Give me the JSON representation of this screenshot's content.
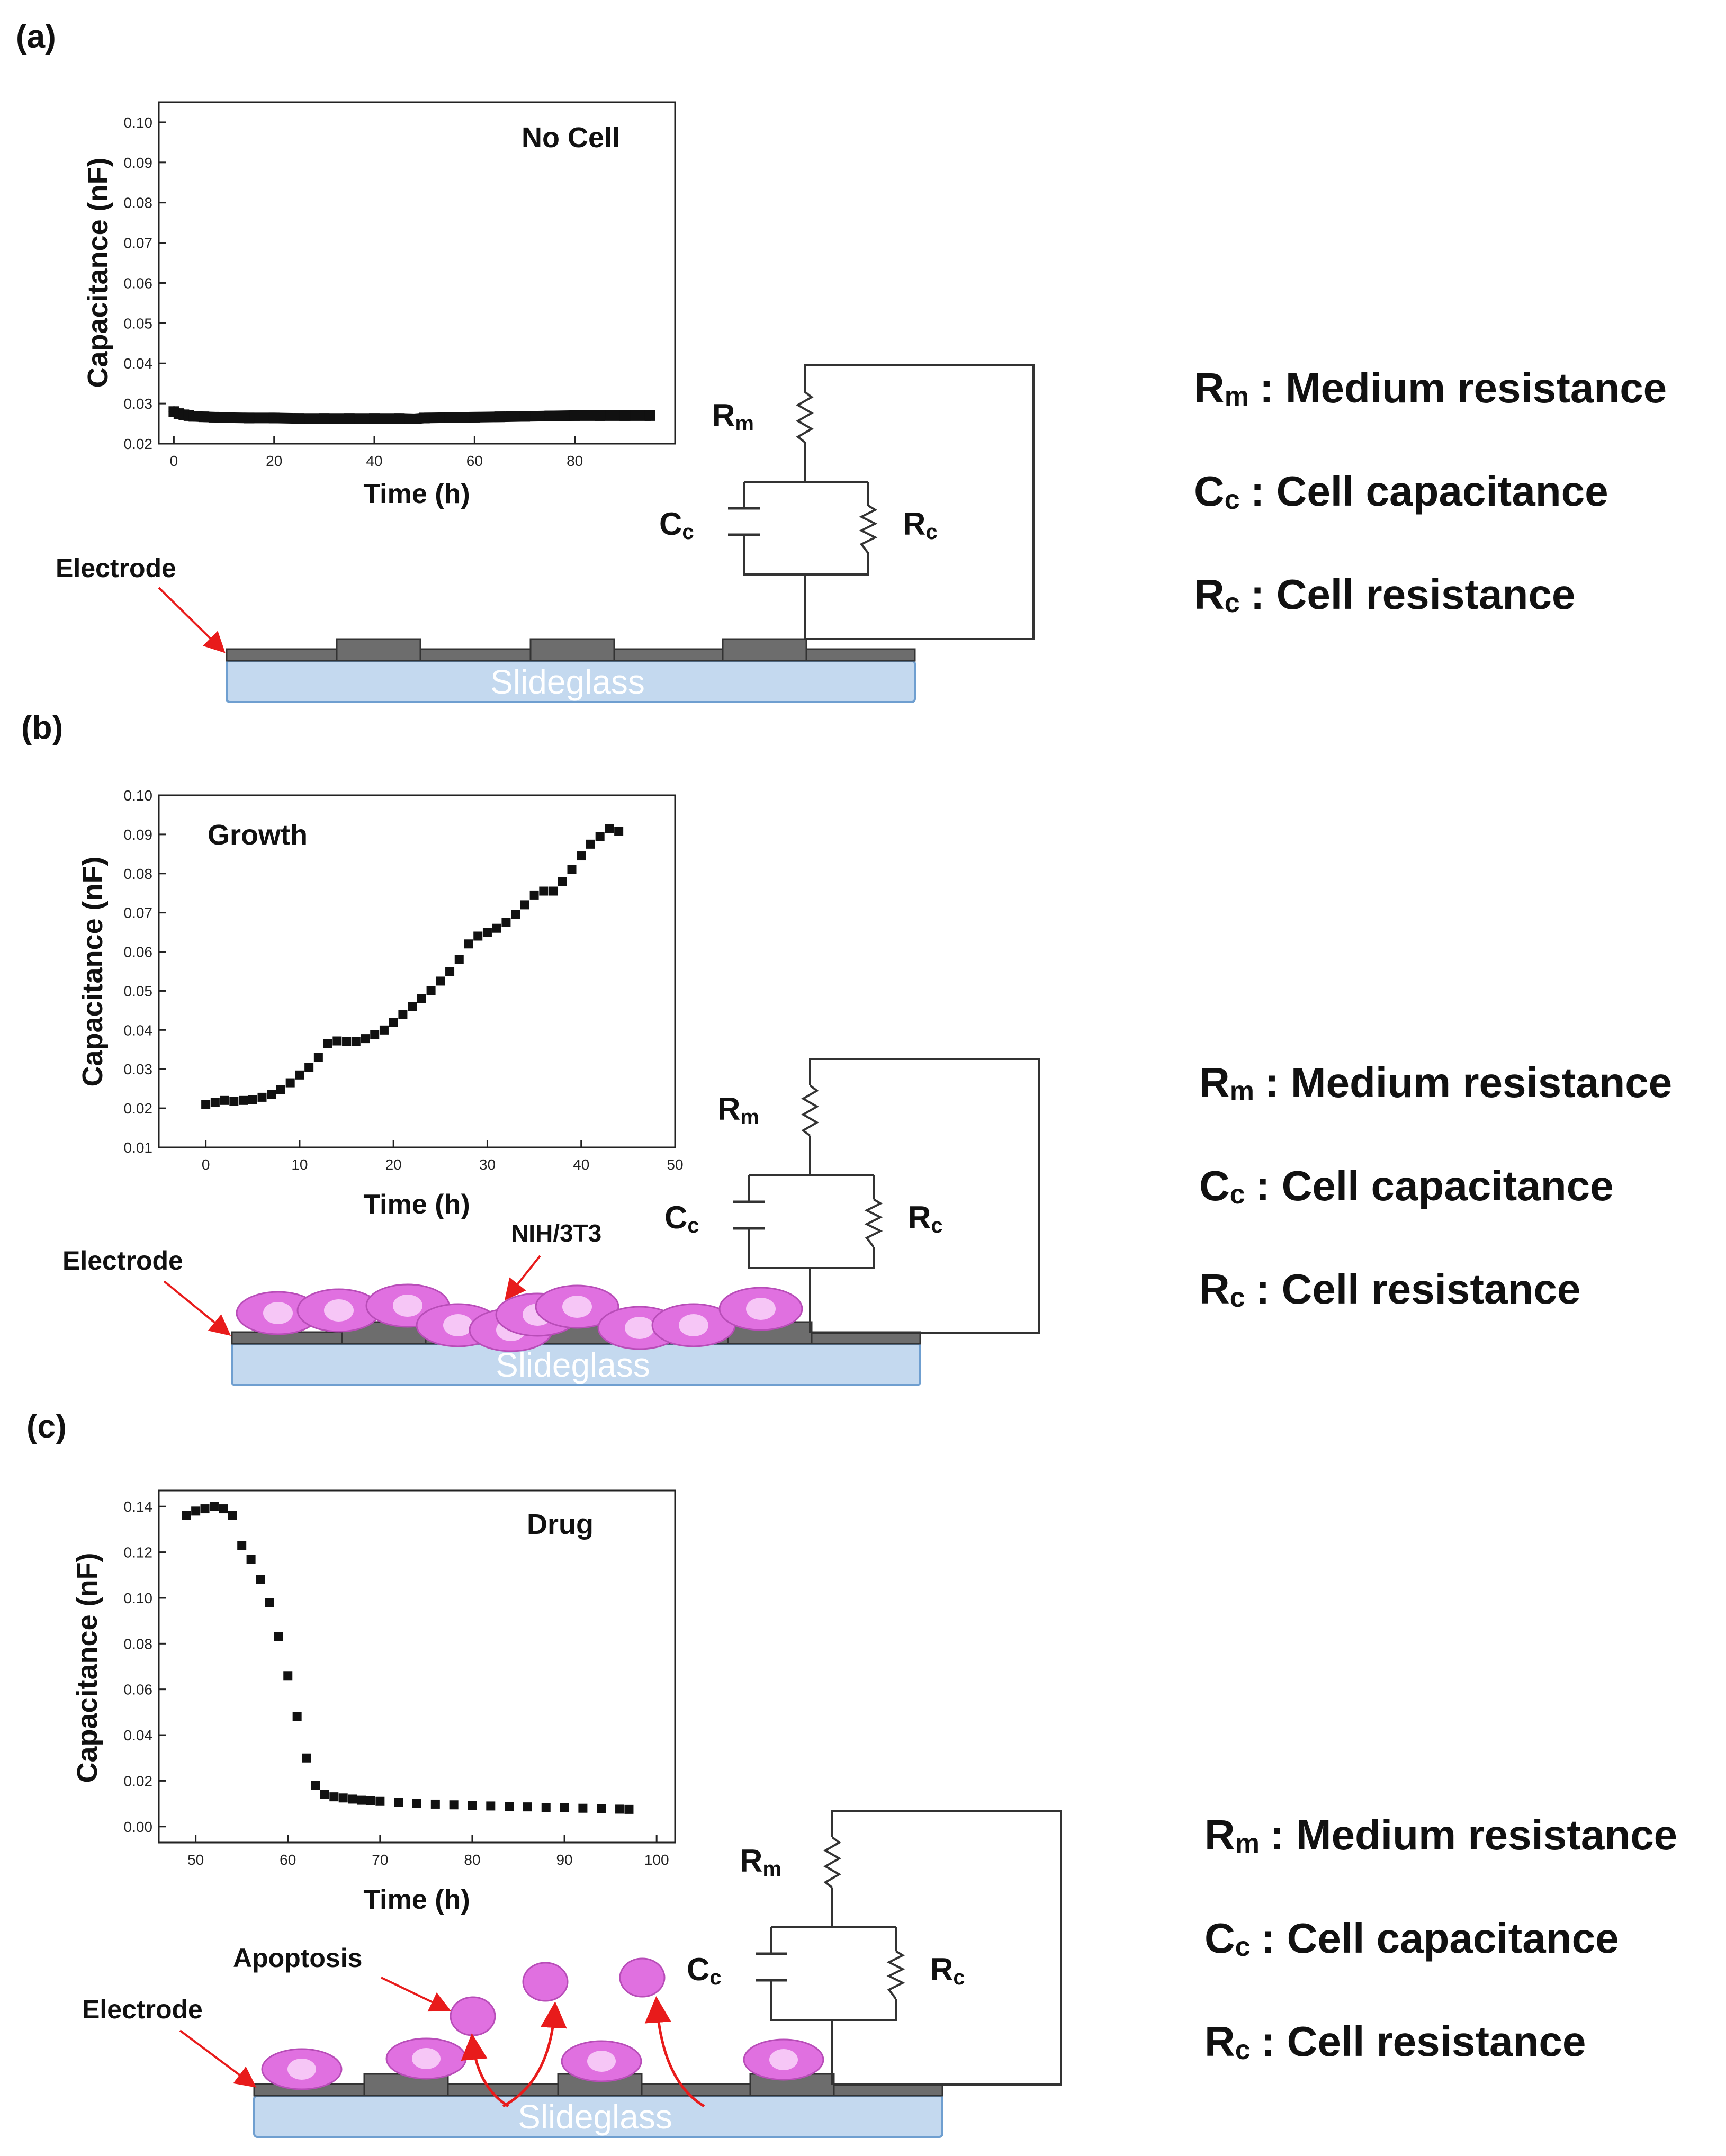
{
  "panels": [
    {
      "label": "(a)",
      "inset": "No Cell",
      "electrode": "Electrode",
      "substrate": "Slideglass",
      "cell_label": "",
      "apoptosis": ""
    },
    {
      "label": "(b)",
      "inset": "Growth",
      "electrode": "Electrode",
      "substrate": "Slideglass",
      "cell_label": "NIH/3T3",
      "apoptosis": ""
    },
    {
      "label": "(c)",
      "inset": "Drug",
      "electrode": "Electrode",
      "substrate": "Slideglass",
      "cell_label": "",
      "apoptosis": "Apoptosis"
    }
  ],
  "circuit": {
    "rm": "R",
    "rm_sub": "m",
    "cc": "C",
    "cc_sub": "c",
    "rc": "R",
    "rc_sub": "c"
  },
  "legend": [
    {
      "symbol": "R",
      "sub": "m",
      "text": ": Medium resistance"
    },
    {
      "symbol": "C",
      "sub": "c",
      "text": ": Cell capacitance"
    },
    {
      "symbol": "R",
      "sub": "c",
      "text": ": Cell resistance"
    }
  ],
  "colors": {
    "marker": "#111111",
    "electrode": "#6d6d6d",
    "glass": "#c4d9ef",
    "glass_border": "#6f9fd0",
    "cell": "#e070e0",
    "nucleus": "#f6c6f6",
    "arrow": "#e81b1b"
  },
  "chart_data": [
    {
      "type": "scatter",
      "title": "No Cell",
      "xlabel": "Time (h)",
      "ylabel": "Capacitance (nF)",
      "xlim": [
        -3,
        100
      ],
      "ylim": [
        0.02,
        0.105
      ],
      "xticks": [
        0,
        20,
        40,
        60,
        80
      ],
      "yticks": [
        0.02,
        0.03,
        0.04,
        0.05,
        0.06,
        0.07,
        0.08,
        0.09,
        0.1
      ],
      "ytick_labels": [
        "0.02",
        "0.03",
        "0.04",
        "0.05",
        "0.06",
        "0.07",
        "0.08",
        "0.09",
        "0.10"
      ],
      "x": [
        0,
        1,
        2,
        3,
        4,
        6,
        8,
        10,
        15,
        20,
        25,
        30,
        35,
        40,
        45,
        48,
        50,
        55,
        60,
        65,
        70,
        75,
        80,
        85,
        90,
        95
      ],
      "y": [
        0.028,
        0.0275,
        0.0272,
        0.027,
        0.0268,
        0.0267,
        0.0266,
        0.0265,
        0.0264,
        0.0264,
        0.0263,
        0.0263,
        0.0263,
        0.0263,
        0.0263,
        0.0262,
        0.0264,
        0.0265,
        0.0266,
        0.0267,
        0.0268,
        0.0269,
        0.027,
        0.027,
        0.027,
        0.027
      ]
    },
    {
      "type": "scatter",
      "title": "Growth",
      "xlabel": "Time (h)",
      "ylabel": "Capacitance (nF)",
      "xlim": [
        -5,
        50
      ],
      "ylim": [
        0.01,
        0.1
      ],
      "xticks": [
        0,
        10,
        20,
        30,
        40,
        50
      ],
      "yticks": [
        0.01,
        0.02,
        0.03,
        0.04,
        0.05,
        0.06,
        0.07,
        0.08,
        0.09,
        0.1
      ],
      "ytick_labels": [
        "0.01",
        "0.02",
        "0.03",
        "0.04",
        "0.05",
        "0.06",
        "0.07",
        "0.08",
        "0.09",
        "0.10"
      ],
      "x": [
        0,
        1,
        2,
        3,
        4,
        5,
        6,
        7,
        8,
        9,
        10,
        11,
        12,
        13,
        14,
        15,
        16,
        17,
        18,
        19,
        20,
        21,
        22,
        23,
        24,
        25,
        26,
        27,
        28,
        29,
        30,
        31,
        32,
        33,
        34,
        35,
        36,
        37,
        38,
        39,
        40,
        41,
        42,
        43,
        44
      ],
      "y": [
        0.021,
        0.0215,
        0.022,
        0.0218,
        0.022,
        0.0222,
        0.0228,
        0.0235,
        0.0248,
        0.0265,
        0.0285,
        0.0305,
        0.033,
        0.0365,
        0.0372,
        0.037,
        0.037,
        0.0378,
        0.0388,
        0.04,
        0.042,
        0.044,
        0.046,
        0.048,
        0.05,
        0.0525,
        0.055,
        0.058,
        0.062,
        0.064,
        0.065,
        0.066,
        0.0675,
        0.0695,
        0.072,
        0.0745,
        0.0755,
        0.0755,
        0.078,
        0.081,
        0.0845,
        0.0875,
        0.0895,
        0.0915,
        0.0908
      ]
    },
    {
      "type": "scatter",
      "title": "Drug",
      "xlabel": "Time (h)",
      "ylabel": "Capacitance (nF)",
      "xlim": [
        46,
        102
      ],
      "ylim": [
        -0.007,
        0.147
      ],
      "xticks": [
        50,
        60,
        70,
        80,
        90,
        100
      ],
      "yticks": [
        0.0,
        0.02,
        0.04,
        0.06,
        0.08,
        0.1,
        0.12,
        0.14
      ],
      "ytick_labels": [
        "0.00",
        "0.02",
        "0.04",
        "0.06",
        "0.08",
        "0.10",
        "0.12",
        "0.14"
      ],
      "x": [
        49,
        50,
        51,
        52,
        53,
        54,
        55,
        56,
        57,
        58,
        59,
        60,
        61,
        62,
        63,
        64,
        65,
        66,
        67,
        68,
        69,
        70,
        72,
        74,
        76,
        78,
        80,
        82,
        84,
        86,
        88,
        90,
        92,
        94,
        96,
        97
      ],
      "y": [
        0.136,
        0.138,
        0.139,
        0.14,
        0.139,
        0.136,
        0.123,
        0.117,
        0.108,
        0.098,
        0.083,
        0.066,
        0.048,
        0.03,
        0.018,
        0.014,
        0.013,
        0.0125,
        0.012,
        0.0115,
        0.0112,
        0.011,
        0.0105,
        0.0102,
        0.0098,
        0.0095,
        0.0092,
        0.009,
        0.0088,
        0.0086,
        0.0084,
        0.0082,
        0.008,
        0.0078,
        0.0076,
        0.0075
      ]
    }
  ]
}
